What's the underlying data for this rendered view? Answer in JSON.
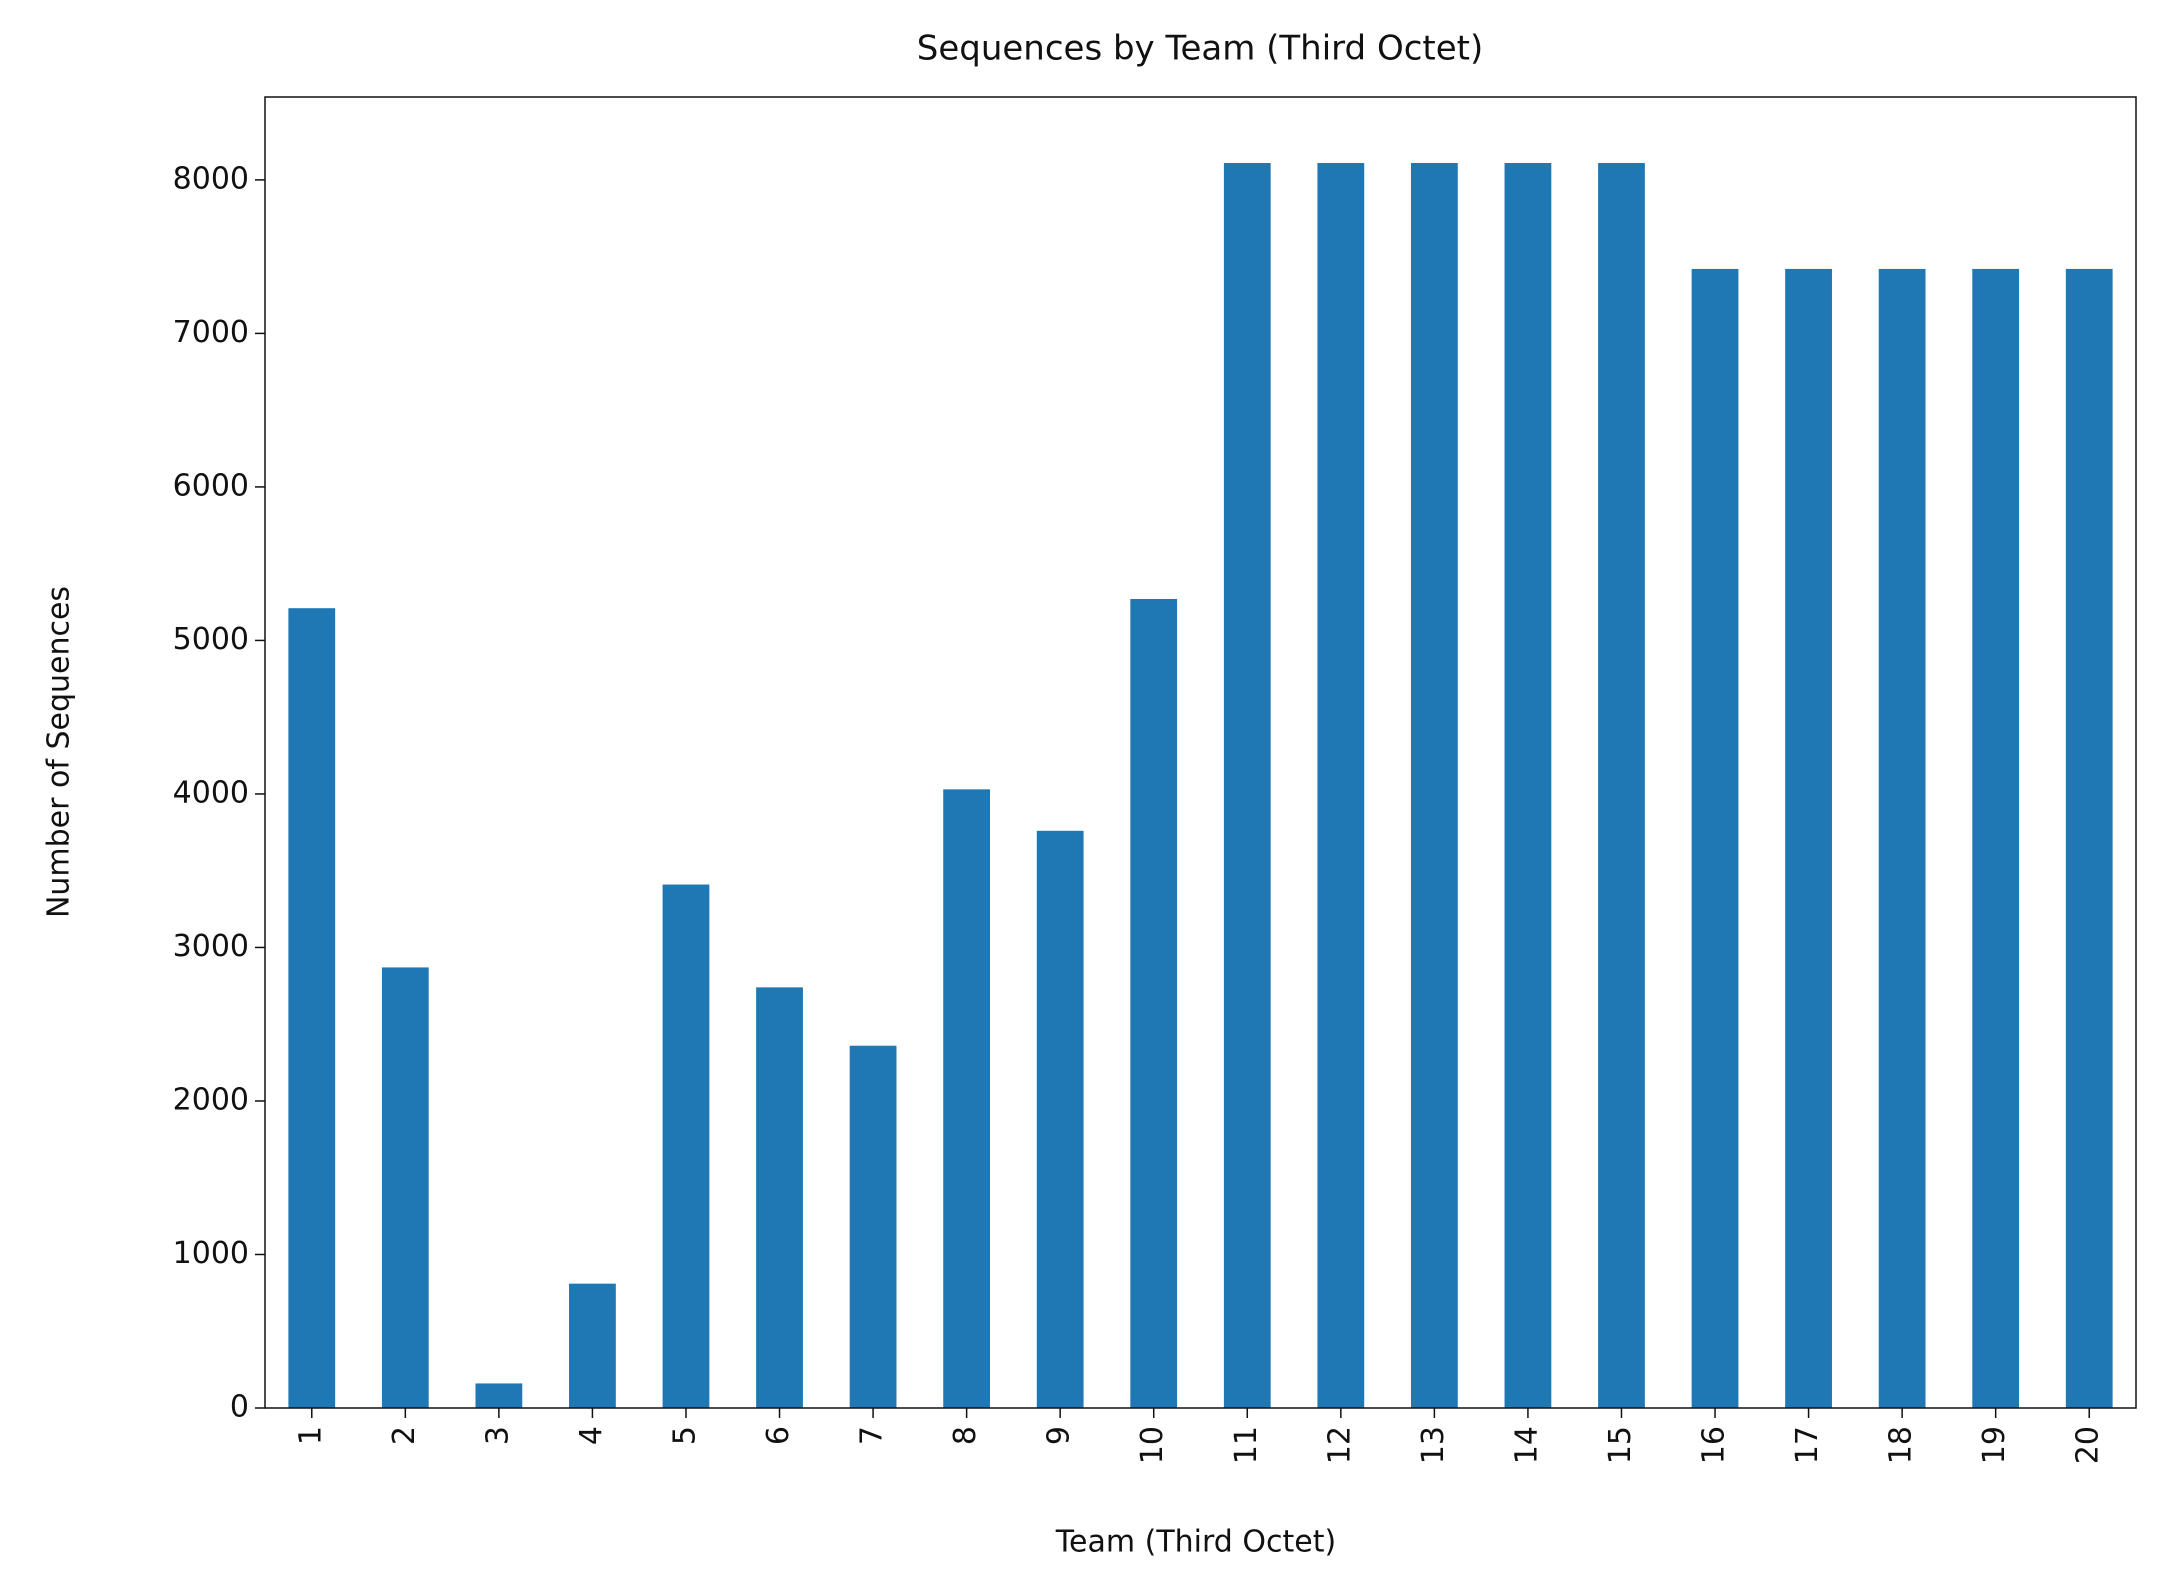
{
  "chart_data": {
    "type": "bar",
    "title": "Sequences by Team (Third Octet)",
    "x_label": "Team (Third Octet)",
    "y_label": "Number of Sequences",
    "categories": [
      "1",
      "2",
      "3",
      "4",
      "5",
      "6",
      "7",
      "8",
      "9",
      "10",
      "11",
      "12",
      "13",
      "14",
      "15",
      "16",
      "17",
      "18",
      "19",
      "20"
    ],
    "values": [
      5210,
      2870,
      160,
      810,
      3410,
      2740,
      2360,
      4030,
      3760,
      5270,
      8110,
      8110,
      8110,
      8110,
      8110,
      7420,
      7420,
      7420,
      7420,
      7420
    ],
    "color": "#1f77b4",
    "ylim": [
      0,
      8540
    ],
    "yticks": [
      0,
      1000,
      2000,
      3000,
      4000,
      5000,
      6000,
      7000,
      8000
    ],
    "grid": false
  }
}
